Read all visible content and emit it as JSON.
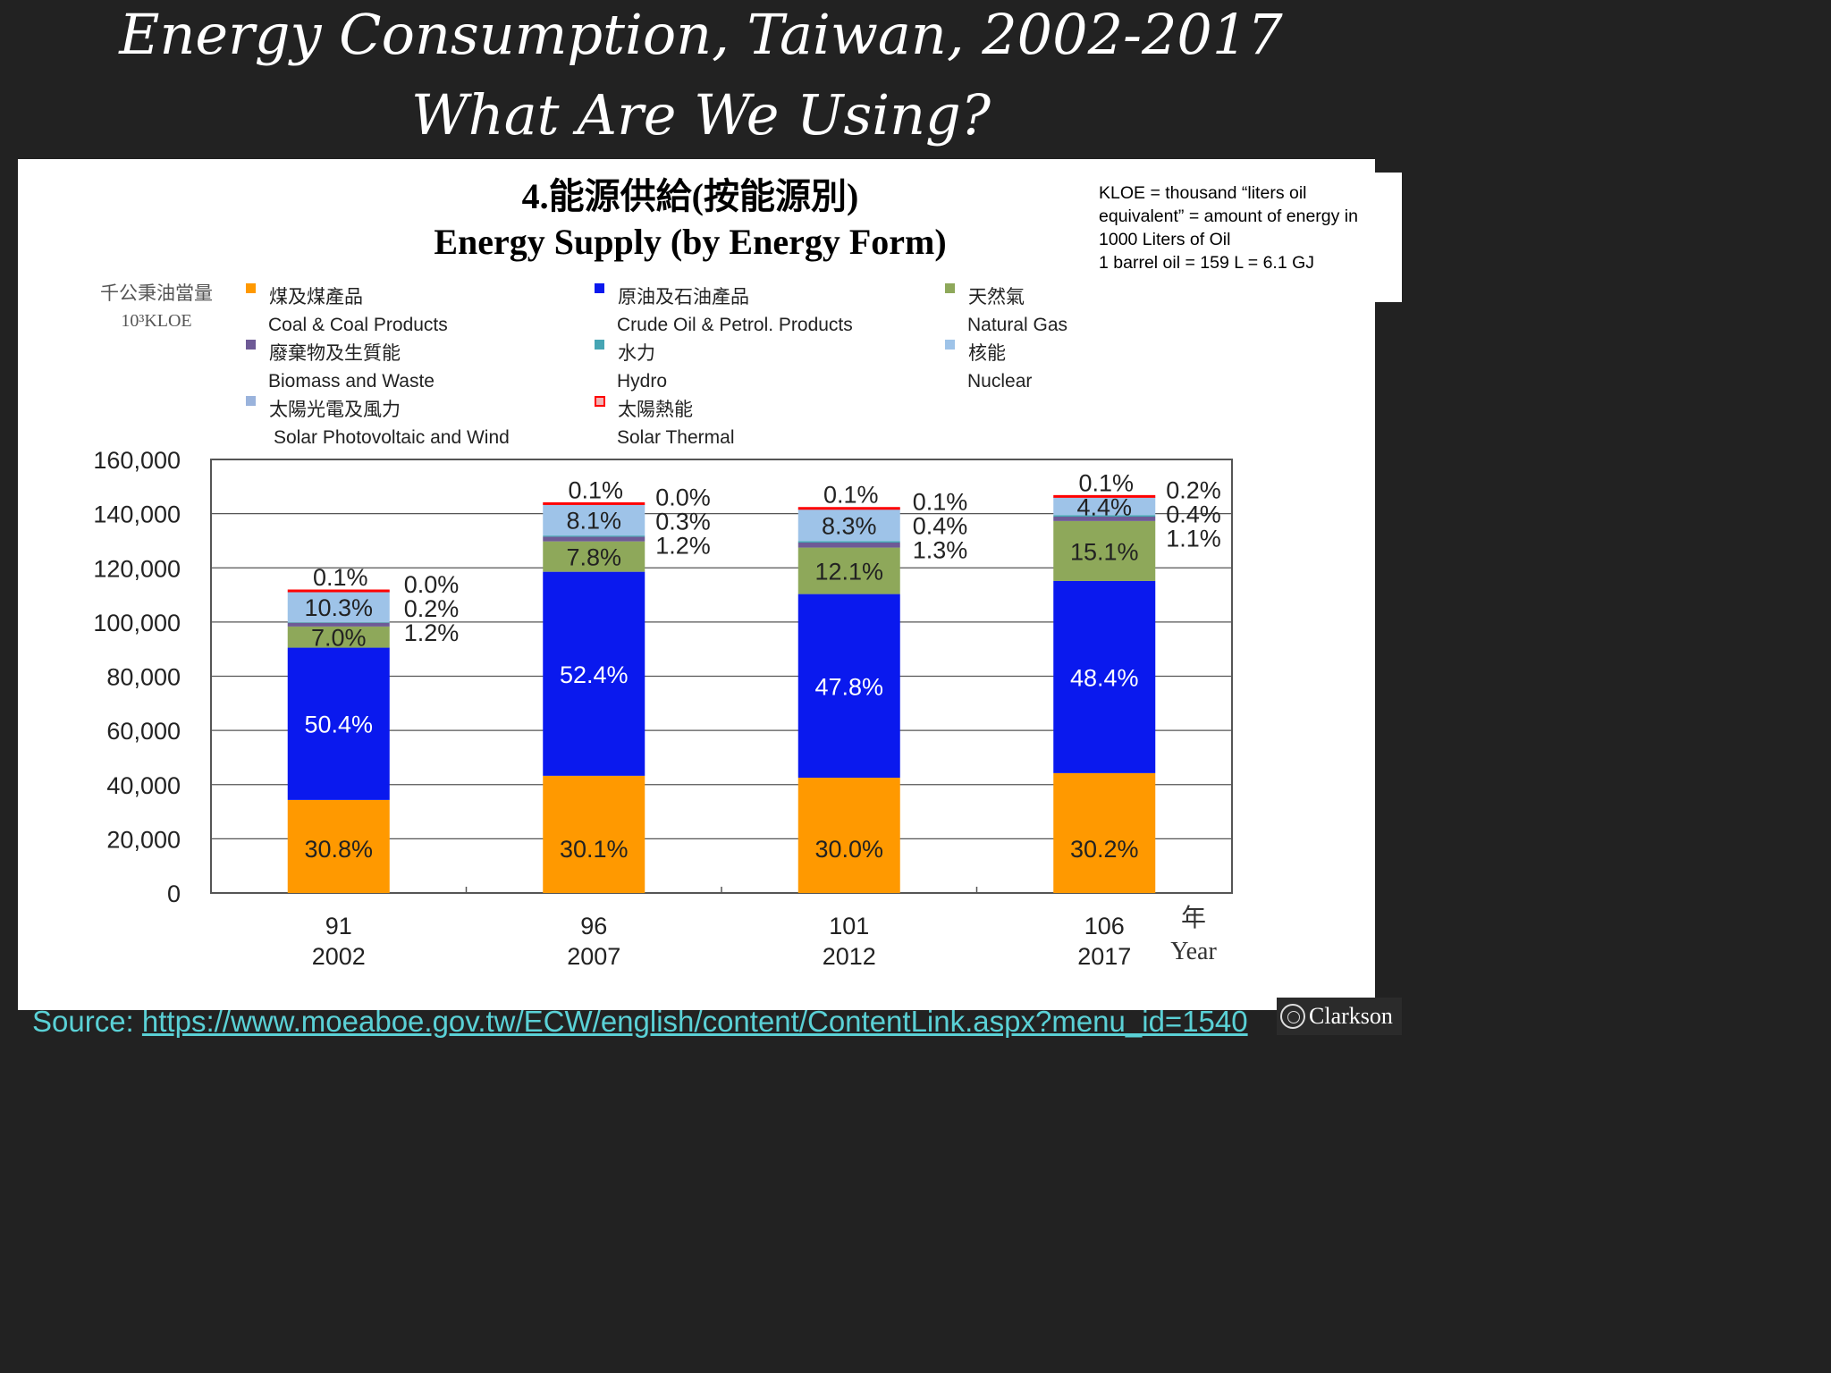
{
  "slide": {
    "title_line1": "Energy Consumption, Taiwan, 2002-2017",
    "title_line2": "What Are We Using?",
    "note_lines": [
      "KLOE = thousand “liters oil",
      "equivalent” = amount of energy in",
      "1000 Liters of Oil",
      "1 barrel oil = 159 L = 6.1 GJ"
    ],
    "source_label": "Source: ",
    "source_link": "https://www.moeaboe.gov.tw/ECW/english/content/ContentLink.aspx?menu_id=1540",
    "logo_text": "Clarkson"
  },
  "colors": {
    "coal": "#ff9900",
    "oil": "#0a19ee",
    "gas": "#8ea85a",
    "biomass": "#6e5a96",
    "hydro": "#46a5b4",
    "nuclear": "#9ec3e8",
    "solar_pv_wind": "#9ab3dc",
    "solar_thermal": "#ff0000"
  },
  "chart_data": {
    "type": "bar",
    "stacked": true,
    "title_zh": "4.能源供給(按能源別)",
    "title": "Energy Supply (by Energy Form)",
    "ylabel_zh": "千公秉油當量",
    "ylabel": "10³KLOE",
    "ylim": [
      0,
      160000
    ],
    "yticks": [
      "0",
      "20,000",
      "40,000",
      "60,000",
      "80,000",
      "100,000",
      "120,000",
      "140,000",
      "160,000"
    ],
    "grid": true,
    "xlabel_zh": "年",
    "xlabel": "Year",
    "categories_roc": [
      "91",
      "96",
      "101",
      "106"
    ],
    "categories": [
      "2002",
      "2007",
      "2012",
      "2017"
    ],
    "totals": [
      111500,
      143700,
      141800,
      146500
    ],
    "legend": [
      {
        "key": "coal",
        "zh": "煤及煤產品",
        "en": "Coal & Coal Products"
      },
      {
        "key": "oil",
        "zh": "原油及石油產品",
        "en": "Crude Oil & Petrol. Products"
      },
      {
        "key": "gas",
        "zh": "天然氣",
        "en": "Natural Gas"
      },
      {
        "key": "biomass",
        "zh": "廢棄物及生質能",
        "en": "Biomass and Waste"
      },
      {
        "key": "hydro",
        "zh": "水力",
        "en": "Hydro"
      },
      {
        "key": "nuclear",
        "zh": "核能",
        "en": "Nuclear"
      },
      {
        "key": "solar_pv_wind",
        "zh": "太陽光電及風力",
        "en": "Solar Photovoltaic and Wind"
      },
      {
        "key": "solar_thermal",
        "zh": "太陽熱能",
        "en": "Solar Thermal"
      }
    ],
    "series": [
      {
        "name": "Coal & Coal Products",
        "key": "coal",
        "percent": [
          30.8,
          30.1,
          30.0,
          30.2
        ],
        "labels": [
          "30.8%",
          "30.1%",
          "30.0%",
          "30.2%"
        ]
      },
      {
        "name": "Crude Oil & Petrol. Products",
        "key": "oil",
        "percent": [
          50.4,
          52.4,
          47.8,
          48.4
        ],
        "labels": [
          "50.4%",
          "52.4%",
          "47.8%",
          "48.4%"
        ]
      },
      {
        "name": "Natural Gas",
        "key": "gas",
        "percent": [
          7.0,
          7.8,
          12.1,
          15.1
        ],
        "labels": [
          "7.0%",
          "7.8%",
          "12.1%",
          "15.1%"
        ]
      },
      {
        "name": "Biomass and Waste",
        "key": "biomass",
        "percent": [
          1.2,
          1.2,
          1.3,
          1.1
        ],
        "labels": [
          "1.2%",
          "1.2%",
          "1.3%",
          "1.1%"
        ]
      },
      {
        "name": "Hydro",
        "key": "hydro",
        "percent": [
          0.2,
          0.3,
          0.4,
          0.4
        ],
        "labels": [
          "0.2%",
          "0.3%",
          "0.4%",
          "0.4%"
        ]
      },
      {
        "name": "Nuclear",
        "key": "nuclear",
        "percent": [
          10.3,
          8.1,
          8.3,
          4.4
        ],
        "labels": [
          "10.3%",
          "8.1%",
          "8.3%",
          "4.4%"
        ]
      },
      {
        "name": "Solar Photovoltaic and Wind",
        "key": "solar_pv_wind",
        "percent": [
          0.0,
          0.0,
          0.1,
          0.2
        ],
        "labels": [
          "0.0%",
          "0.0%",
          "0.1%",
          "0.2%"
        ]
      },
      {
        "name": "Solar Thermal",
        "key": "solar_thermal",
        "percent": [
          0.1,
          0.1,
          0.1,
          0.1
        ],
        "labels": [
          "0.1%",
          "0.1%",
          "0.1%",
          "0.1%"
        ]
      }
    ]
  }
}
